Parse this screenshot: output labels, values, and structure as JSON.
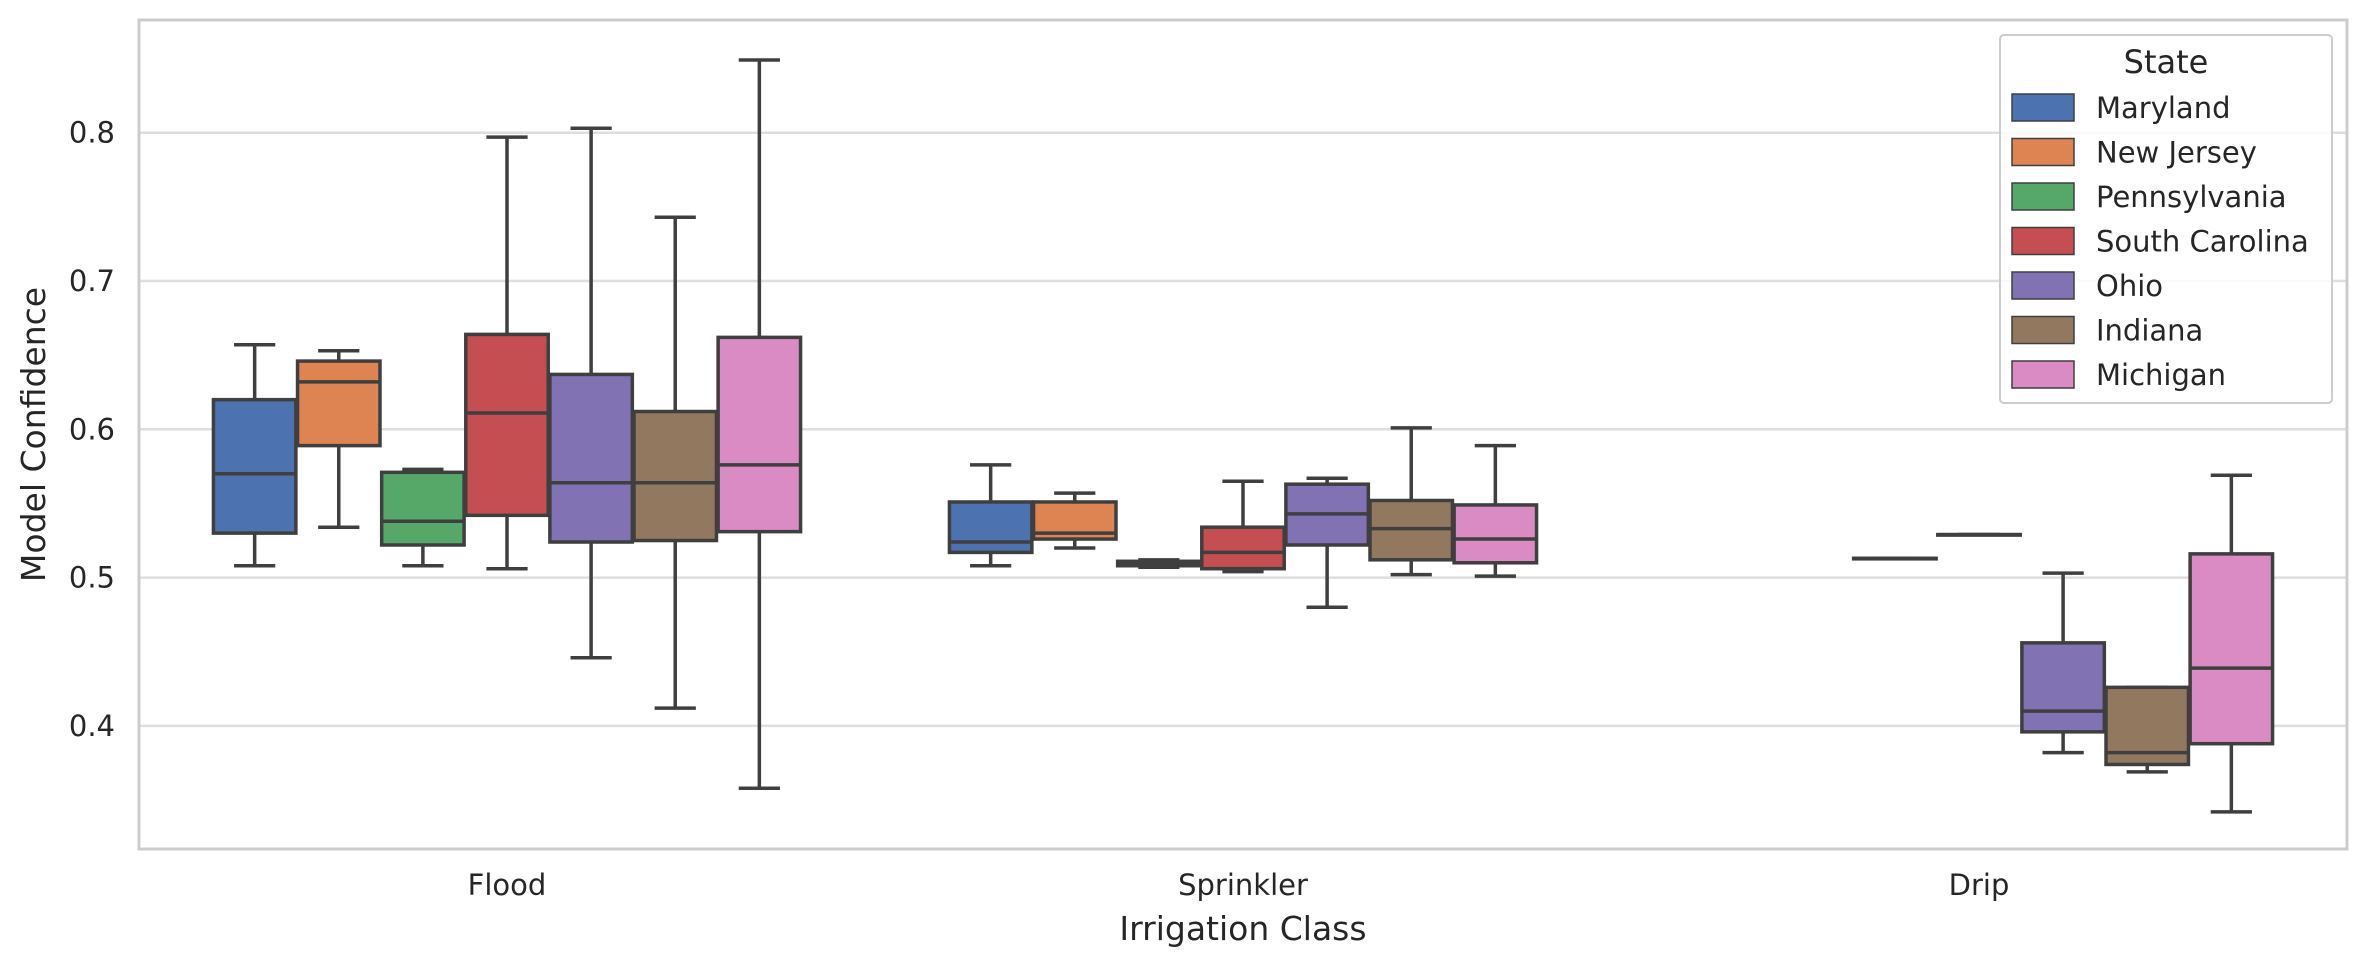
{
  "chart_data": {
    "type": "box",
    "xlabel": "Irrigation Class",
    "ylabel": "Model Confidence",
    "ylim": [
      0.317,
      0.876
    ],
    "yticks": [
      0.4,
      0.5,
      0.6,
      0.7,
      0.8
    ],
    "ytick_labels": [
      "0.4",
      "0.5",
      "0.6",
      "0.7",
      "0.8"
    ],
    "grid": true,
    "legend": {
      "title": "State",
      "placement": "top-right"
    },
    "categories": [
      "Flood",
      "Sprinkler",
      "Drip"
    ],
    "series": [
      {
        "name": "Maryland",
        "color": "#4c72b0",
        "boxes": [
          {
            "whislo": 0.508,
            "q1": 0.53,
            "med": 0.57,
            "q3": 0.62,
            "whishi": 0.657
          },
          {
            "whislo": 0.508,
            "q1": 0.517,
            "med": 0.524,
            "q3": 0.551,
            "whishi": 0.576
          },
          null
        ]
      },
      {
        "name": "New Jersey",
        "color": "#dd8452",
        "boxes": [
          {
            "whislo": 0.534,
            "q1": 0.589,
            "med": 0.632,
            "q3": 0.646,
            "whishi": 0.653
          },
          {
            "whislo": 0.52,
            "q1": 0.526,
            "med": 0.53,
            "q3": 0.551,
            "whishi": 0.557
          },
          null
        ]
      },
      {
        "name": "Pennsylvania",
        "color": "#55a868",
        "boxes": [
          {
            "whislo": 0.508,
            "q1": 0.522,
            "med": 0.538,
            "q3": 0.571,
            "whishi": 0.573
          },
          {
            "whislo": 0.507,
            "q1": 0.508,
            "med": 0.509,
            "q3": 0.511,
            "whishi": 0.512
          },
          {
            "whislo": 0.513,
            "q1": 0.513,
            "med": 0.513,
            "q3": 0.513,
            "whishi": 0.513
          }
        ]
      },
      {
        "name": "South Carolina",
        "color": "#c44e52",
        "boxes": [
          {
            "whislo": 0.506,
            "q1": 0.542,
            "med": 0.611,
            "q3": 0.664,
            "whishi": 0.797
          },
          {
            "whislo": 0.504,
            "q1": 0.506,
            "med": 0.517,
            "q3": 0.534,
            "whishi": 0.565
          },
          {
            "whislo": 0.529,
            "q1": 0.529,
            "med": 0.529,
            "q3": 0.529,
            "whishi": 0.529
          }
        ]
      },
      {
        "name": "Ohio",
        "color": "#8172b3",
        "boxes": [
          {
            "whislo": 0.446,
            "q1": 0.524,
            "med": 0.564,
            "q3": 0.637,
            "whishi": 0.803
          },
          {
            "whislo": 0.48,
            "q1": 0.522,
            "med": 0.543,
            "q3": 0.563,
            "whishi": 0.567
          },
          {
            "whislo": 0.382,
            "q1": 0.396,
            "med": 0.41,
            "q3": 0.456,
            "whishi": 0.503
          }
        ]
      },
      {
        "name": "Indiana",
        "color": "#937860",
        "boxes": [
          {
            "whislo": 0.412,
            "q1": 0.525,
            "med": 0.564,
            "q3": 0.612,
            "whishi": 0.743
          },
          {
            "whislo": 0.502,
            "q1": 0.512,
            "med": 0.533,
            "q3": 0.552,
            "whishi": 0.601
          },
          {
            "whislo": 0.369,
            "q1": 0.374,
            "med": 0.382,
            "q3": 0.426,
            "whishi": 0.426
          }
        ]
      },
      {
        "name": "Michigan",
        "color": "#da8bc3",
        "boxes": [
          {
            "whislo": 0.358,
            "q1": 0.531,
            "med": 0.576,
            "q3": 0.662,
            "whishi": 0.849
          },
          {
            "whislo": 0.501,
            "q1": 0.51,
            "med": 0.526,
            "q3": 0.549,
            "whishi": 0.589
          },
          {
            "whislo": 0.342,
            "q1": 0.388,
            "med": 0.439,
            "q3": 0.516,
            "whishi": 0.569
          }
        ]
      }
    ]
  }
}
